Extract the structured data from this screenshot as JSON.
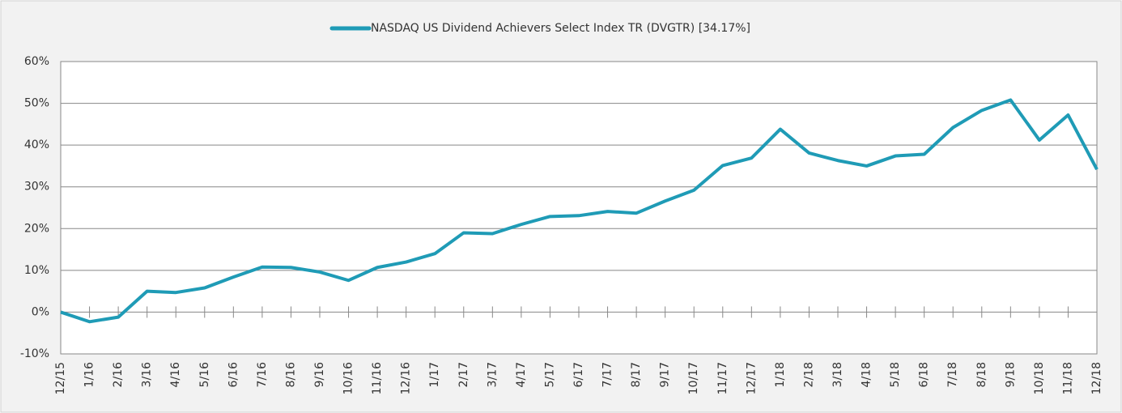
{
  "chart_data": {
    "type": "line",
    "categories": [
      "12/15",
      "1/16",
      "2/16",
      "3/16",
      "4/16",
      "5/16",
      "6/16",
      "7/16",
      "8/16",
      "9/16",
      "10/16",
      "11/16",
      "12/16",
      "1/17",
      "2/17",
      "3/17",
      "4/17",
      "5/17",
      "6/17",
      "7/17",
      "8/17",
      "9/17",
      "10/17",
      "11/17",
      "12/17",
      "1/18",
      "2/18",
      "3/18",
      "4/18",
      "5/18",
      "6/18",
      "7/18",
      "8/18",
      "9/18",
      "10/18",
      "11/18",
      "12/18"
    ],
    "series": [
      {
        "name": "NASDAQ US Dividend Achievers Select Index TR (DVGTR) [34.17%]",
        "color": "#1f9bb6",
        "values": [
          0,
          -2.3,
          -1.2,
          5.0,
          4.7,
          5.8,
          8.4,
          10.8,
          10.7,
          9.6,
          7.6,
          10.7,
          12.0,
          14.0,
          19.0,
          18.8,
          21.0,
          22.9,
          23.1,
          24.1,
          23.7,
          26.6,
          29.2,
          35.1,
          36.9,
          43.8,
          38.1,
          36.3,
          35.0,
          37.4,
          37.8,
          44.2,
          48.3,
          50.8,
          41.2,
          47.2,
          34.17
        ]
      }
    ],
    "ylim": [
      -10,
      60
    ],
    "yticks": [
      {
        "value": -10,
        "label": "-10%"
      },
      {
        "value": 0,
        "label": "0%"
      },
      {
        "value": 10,
        "label": "10%"
      },
      {
        "value": 20,
        "label": "20%"
      },
      {
        "value": 30,
        "label": "30%"
      },
      {
        "value": 40,
        "label": "40%"
      },
      {
        "value": 50,
        "label": "50%"
      },
      {
        "value": 60,
        "label": "60%"
      }
    ],
    "grid": true,
    "legend": "top"
  }
}
